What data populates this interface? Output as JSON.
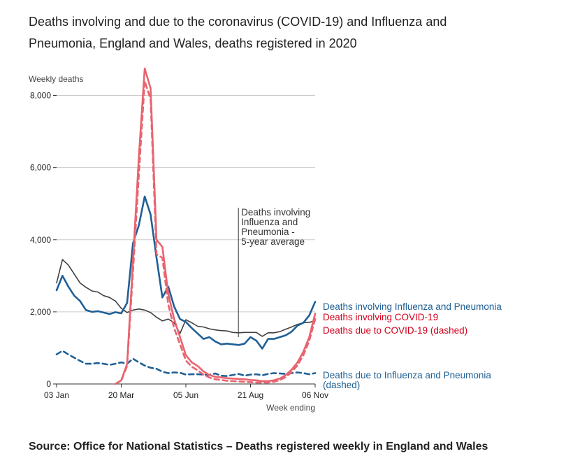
{
  "title": "Deaths involving and due to the coronavirus (COVID-19) and Influenza and Pneumonia, England and Wales, deaths registered in 2020",
  "source": "Source: Office for National Statistics – Deaths registered weekly in England and Wales",
  "colors": {
    "influenza": "#206095",
    "covid": "#e8646f",
    "average": "#414042",
    "grid": "#cccccc"
  },
  "chart_data": {
    "type": "line",
    "ylabel": "Weekly deaths",
    "xlabel": "Week ending",
    "ylim": [
      0,
      9000
    ],
    "yticks": [
      0,
      2000,
      4000,
      6000,
      8000
    ],
    "ytick_labels": [
      "0",
      "2,000",
      "4,000",
      "6,000",
      "8,000"
    ],
    "x_tick_labels": [
      "03 Jan",
      "20 Mar",
      "05 Jun",
      "21 Aug",
      "06 Nov"
    ],
    "x_tick_weeks": [
      1,
      12,
      23,
      34,
      45
    ],
    "x_range_weeks": [
      1,
      45
    ],
    "grid": true,
    "annotation": [
      "Deaths involving",
      "Influenza and",
      "Pneumonia -",
      "5-year average"
    ],
    "annotation_week": 32,
    "series": [
      {
        "name": "Deaths involving Influenza and Pneumonia",
        "style": "solid",
        "color_key": "influenza",
        "start_week": 1,
        "values": [
          2600,
          3000,
          2700,
          2450,
          2300,
          2050,
          2000,
          2020,
          1980,
          1940,
          1990,
          1960,
          2250,
          3900,
          4400,
          5200,
          4700,
          3500,
          2400,
          2700,
          2150,
          1800,
          1720,
          1550,
          1400,
          1250,
          1300,
          1180,
          1100,
          1120,
          1100,
          1080,
          1120,
          1300,
          1200,
          980,
          1250,
          1250,
          1300,
          1350,
          1450,
          1620,
          1700,
          1900,
          2280
        ]
      },
      {
        "name": "Deaths involving COVID-19",
        "style": "solid",
        "color_key": "covid",
        "start_week": 11,
        "values": [
          0,
          100,
          550,
          3400,
          6300,
          8750,
          8200,
          4000,
          3800,
          2500,
          1800,
          1300,
          800,
          600,
          500,
          350,
          250,
          200,
          180,
          160,
          150,
          140,
          130,
          110,
          100,
          80,
          80,
          100,
          150,
          250,
          400,
          600,
          900,
          1300,
          1950
        ]
      },
      {
        "name": "Deaths due to COVID-19 (dashed)",
        "style": "dashed",
        "color_key": "covid",
        "start_week": 11,
        "values": [
          0,
          90,
          500,
          3100,
          5800,
          8400,
          7900,
          3600,
          3500,
          2200,
          1550,
          1100,
          650,
          480,
          380,
          260,
          180,
          130,
          110,
          90,
          80,
          70,
          60,
          50,
          40,
          40,
          40,
          60,
          110,
          190,
          330,
          520,
          800,
          1200,
          1800
        ]
      },
      {
        "name": "Deaths due to Influenza and Pneumonia (dashed)",
        "style": "dashed",
        "color_key": "influenza",
        "start_week": 1,
        "values": [
          820,
          920,
          820,
          730,
          640,
          560,
          560,
          580,
          560,
          530,
          560,
          600,
          560,
          700,
          600,
          510,
          450,
          420,
          340,
          300,
          320,
          310,
          260,
          270,
          270,
          260,
          250,
          290,
          230,
          220,
          250,
          280,
          230,
          260,
          270,
          240,
          280,
          300,
          290,
          280,
          300,
          320,
          300,
          270,
          300
        ]
      },
      {
        "name": "Deaths involving Influenza and Pneumonia - 5-year average",
        "style": "solid",
        "color_key": "average",
        "start_week": 1,
        "values": [
          2800,
          3450,
          3300,
          3050,
          2800,
          2680,
          2580,
          2550,
          2450,
          2400,
          2300,
          2100,
          1980,
          2050,
          2080,
          2050,
          1980,
          1850,
          1750,
          1800,
          1700,
          1400,
          1780,
          1700,
          1600,
          1580,
          1530,
          1500,
          1480,
          1470,
          1430,
          1420,
          1430,
          1430,
          1430,
          1320,
          1420,
          1420,
          1450,
          1520,
          1580,
          1650,
          1700,
          1710,
          1750
        ]
      }
    ],
    "series_labels": [
      {
        "lines": [
          "Deaths involving Influenza and Pneumonia"
        ],
        "color_key": "influenza"
      },
      {
        "lines": [
          "Deaths involving COVID-19"
        ],
        "color_key": "covid_text"
      },
      {
        "lines": [
          "Deaths due to COVID-19 (dashed)"
        ],
        "color_key": "covid_text"
      },
      {
        "lines": [
          "Deaths due to Influenza and Pneumonia",
          "(dashed)"
        ],
        "color_key": "influenza"
      }
    ],
    "label_colors": {
      "covid_text": "#d0021b"
    }
  }
}
